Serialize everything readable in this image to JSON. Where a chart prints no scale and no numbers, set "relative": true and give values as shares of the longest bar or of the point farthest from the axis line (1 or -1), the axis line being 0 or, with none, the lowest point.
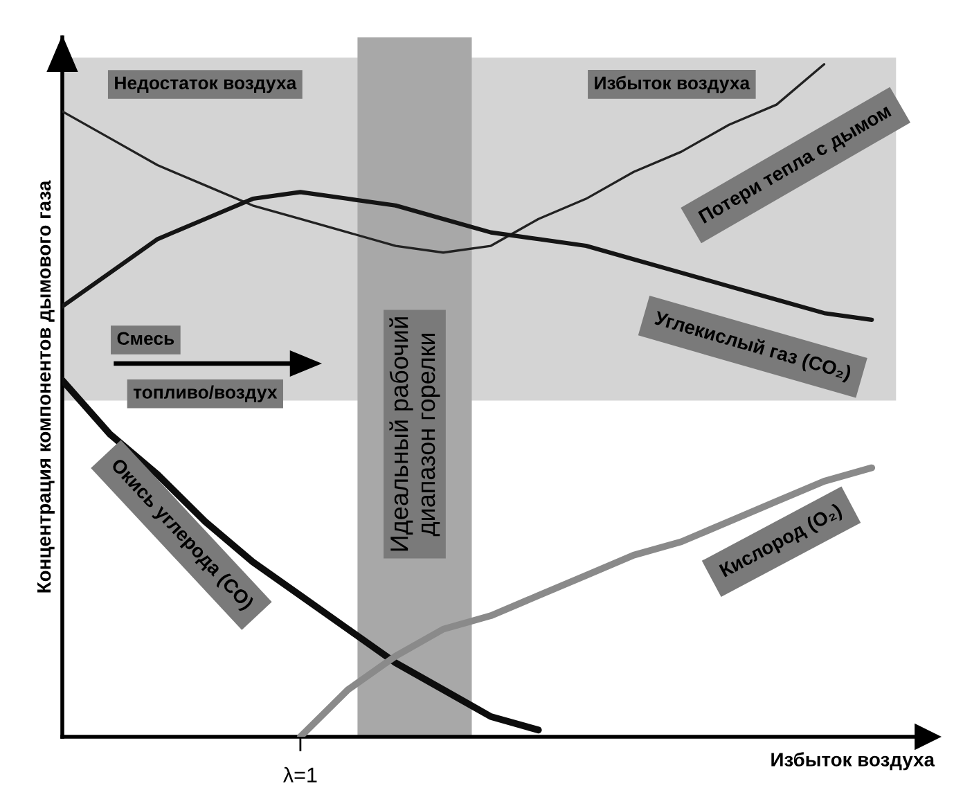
{
  "chart_data": {
    "type": "line",
    "relative": true,
    "xlabel": "Избыток воздуха",
    "ylabel": "Концентрация компонентов дымового газа",
    "categories": [
      null,
      null,
      null,
      null,
      null,
      null,
      null,
      null,
      null,
      null,
      null,
      null,
      null,
      null,
      null,
      null,
      null,
      null
    ],
    "series": [
      {
        "name": "Потери тепла с дымом",
        "color": "#222222",
        "values": [
          0.93,
          0.89,
          0.85,
          0.82,
          0.79,
          0.77,
          0.75,
          0.73,
          0.72,
          0.73,
          0.77,
          0.8,
          0.84,
          0.87,
          0.91,
          0.94,
          1.0,
          null
        ]
      },
      {
        "name": "Углекислый газ (CO₂)",
        "color": "#151515",
        "values": [
          0.64,
          0.69,
          0.74,
          0.77,
          0.8,
          0.81,
          0.8,
          0.79,
          0.77,
          0.75,
          0.74,
          0.73,
          0.71,
          0.69,
          0.67,
          0.65,
          0.63,
          0.62
        ]
      },
      {
        "name": "Окись углерода (CO)",
        "color": "#0d0d0d",
        "values": [
          0.53,
          0.45,
          0.39,
          0.32,
          0.26,
          0.21,
          0.16,
          0.11,
          0.07,
          0.03,
          0.01,
          null,
          null,
          null,
          null,
          null,
          null,
          null
        ]
      },
      {
        "name": "Кислород (O₂)",
        "color": "#8a8a8a",
        "values": [
          null,
          null,
          null,
          null,
          null,
          0,
          0.07,
          0.12,
          0.16,
          0.18,
          0.21,
          0.24,
          0.27,
          0.29,
          0.32,
          0.35,
          0.38,
          0.4
        ]
      }
    ],
    "annotations": [
      "Недостаток воздуха",
      "Избыток воздуха",
      "Смесь",
      "топливо/воздух",
      "λ=1",
      "Идеальный рабочий\nдиапазон горелки"
    ]
  }
}
